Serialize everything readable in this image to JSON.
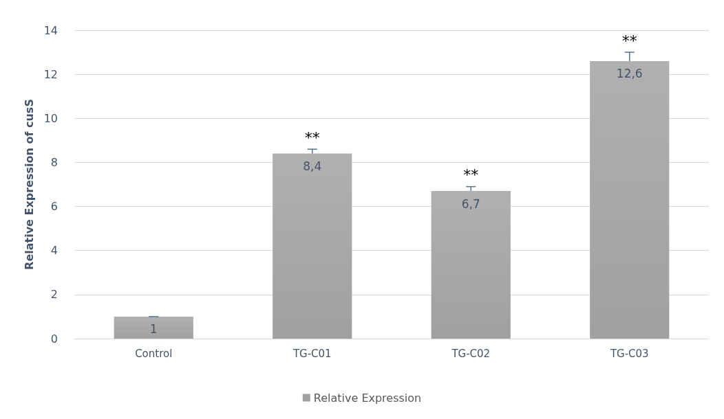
{
  "chart_data": {
    "type": "bar",
    "ylabel": "Relative Expression of cusS",
    "categories": [
      "Control",
      "TG-C01",
      "TG-C02",
      "TG-C03"
    ],
    "series": [
      {
        "name": "Relative Expression",
        "color": "#a0a0a0",
        "values": [
          1,
          8.4,
          6.7,
          12.6
        ],
        "value_labels": [
          "1",
          "8,4",
          "6,7",
          "12,6"
        ],
        "errors": [
          [
            1,
            1
          ],
          [
            8.4,
            8.6
          ],
          [
            6.7,
            6.9
          ],
          [
            12.6,
            13.0
          ]
        ]
      }
    ],
    "ylim": [
      0,
      14
    ],
    "yticks": [
      0,
      2,
      4,
      6,
      8,
      10,
      12,
      14
    ],
    "grid": "y",
    "legend": "bottom",
    "annotations": [
      {
        "text": "**",
        "x": "TG-C01",
        "y": 8.4
      },
      {
        "text": "**",
        "x": "TG-C02",
        "y": 6.7
      },
      {
        "text": "**",
        "x": "TG-C03",
        "y": 12.6
      }
    ]
  }
}
